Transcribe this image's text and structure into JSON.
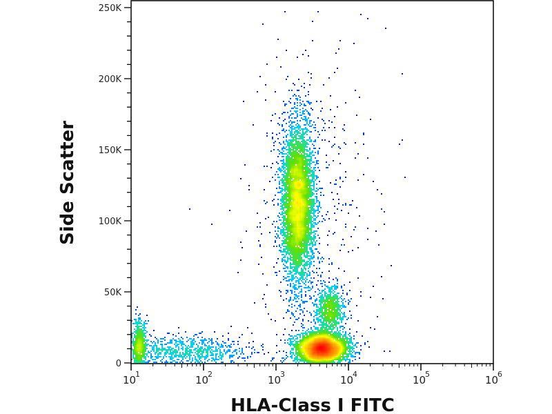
{
  "chart_data": {
    "type": "scatter",
    "subtype": "density-dot-plot",
    "title": "",
    "xlabel": "HLA-Class I FITC",
    "ylabel": "Side Scatter",
    "x_scale": "log",
    "xlim": [
      10,
      1000000
    ],
    "ylim": [
      0,
      260000
    ],
    "x_ticks": [
      {
        "base": "10",
        "exp": "1",
        "value": 10
      },
      {
        "base": "10",
        "exp": "2",
        "value": 100
      },
      {
        "base": "10",
        "exp": "3",
        "value": 1000
      },
      {
        "base": "10",
        "exp": "4",
        "value": 10000
      },
      {
        "base": "10",
        "exp": "5",
        "value": 100000
      },
      {
        "base": "10",
        "exp": "6",
        "value": 1000000
      }
    ],
    "y_ticks": [
      {
        "label": "0",
        "value": 0
      },
      {
        "label": "50K",
        "value": 50000
      },
      {
        "label": "100K",
        "value": 100000
      },
      {
        "label": "150K",
        "value": 150000
      },
      {
        "label": "200K",
        "value": 200000
      },
      {
        "label": "250K",
        "value": 250000
      }
    ],
    "grid": false,
    "colormap": [
      "#0000c8",
      "#0070ff",
      "#00d0ff",
      "#20e090",
      "#60e000",
      "#ffff00",
      "#ff9000",
      "#ff0000"
    ],
    "populations": [
      {
        "x_center": 2000,
        "x_log_sd": 0.11,
        "y_center": 112000,
        "y_sd": 27000,
        "count": 6000
      },
      {
        "x_center": 4300,
        "x_log_sd": 0.17,
        "y_center": 10000,
        "y_sd": 5500,
        "count": 5500
      },
      {
        "x_center": 5600,
        "x_log_sd": 0.1,
        "y_center": 37000,
        "y_sd": 8000,
        "count": 900
      },
      {
        "x_center": 60,
        "x_log_sd": 0.45,
        "y_center": 8000,
        "y_sd": 5500,
        "count": 900
      },
      {
        "x_center": 13,
        "x_log_sd": 0.05,
        "y_center": 12000,
        "y_sd": 9000,
        "count": 700
      },
      {
        "x_center": 3000,
        "x_log_sd": 0.45,
        "y_center": 90000,
        "y_sd": 70000,
        "count": 600
      }
    ]
  }
}
